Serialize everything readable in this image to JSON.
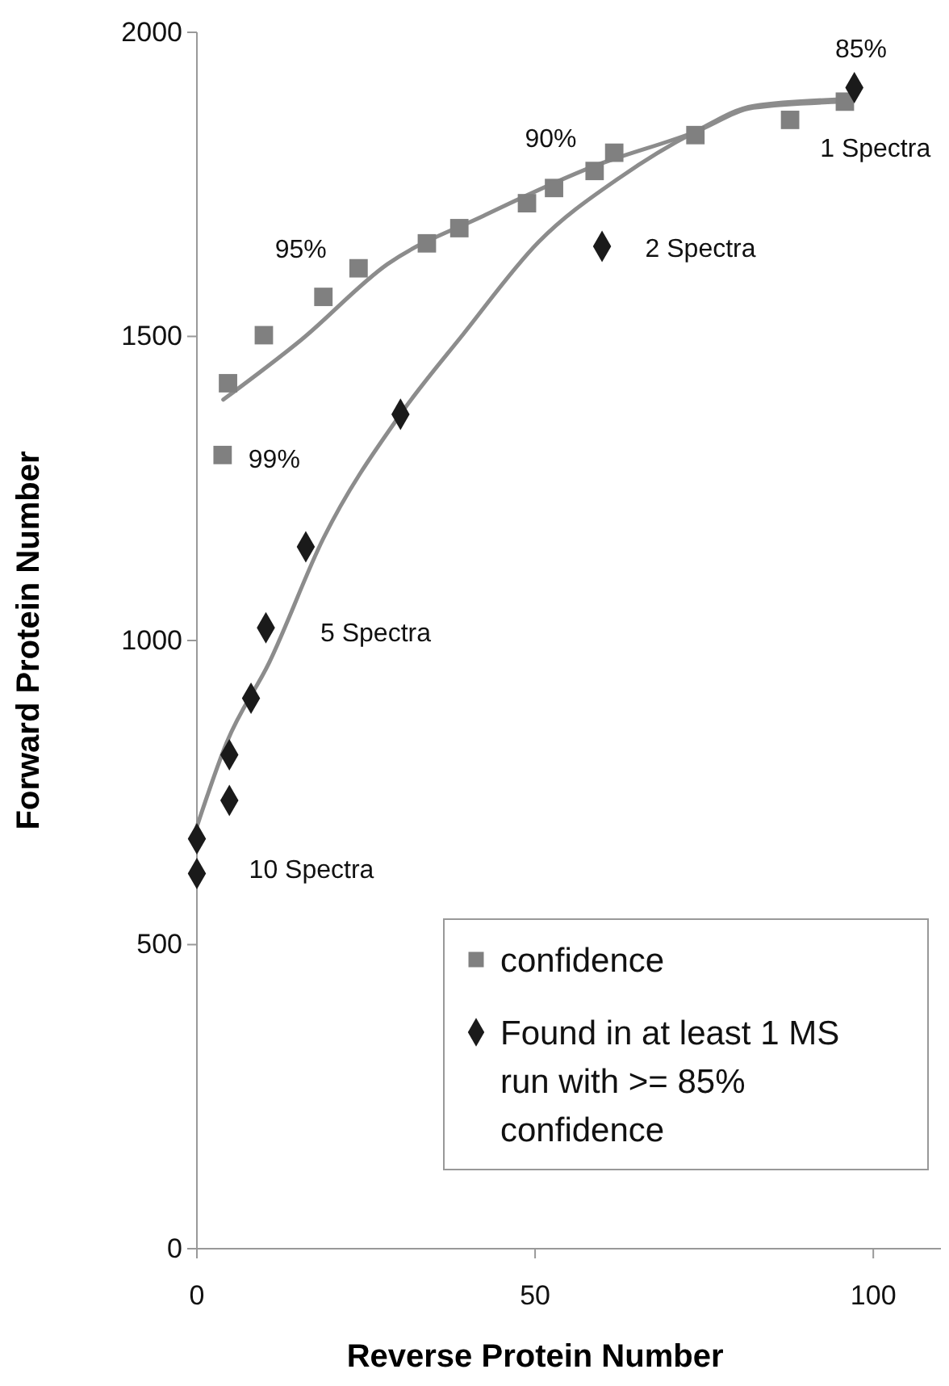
{
  "chart_data": {
    "type": "scatter",
    "xlabel": "Reverse Protein Number",
    "ylabel": "Forward Protein Number",
    "xlim": [
      0,
      110
    ],
    "ylim": [
      0,
      2000
    ],
    "xticks": [
      0,
      50,
      100
    ],
    "yticks": [
      0,
      500,
      1000,
      1500,
      2000
    ],
    "grid": false,
    "legend": "bottom right",
    "series": [
      {
        "name": "confidence",
        "marker": "square",
        "color": "#808080",
        "x": [
          3.8,
          4.6,
          9.9,
          18.7,
          23.9,
          34,
          38.8,
          48.8,
          52.8,
          58.8,
          61.7,
          73.7,
          87.7,
          95.8
        ],
        "values": [
          1305,
          1423,
          1502,
          1565,
          1612,
          1653,
          1678,
          1719,
          1744,
          1772,
          1802,
          1831,
          1856,
          1886
        ]
      },
      {
        "name": "Found in at least 1 MS run with >= 85% confidence",
        "marker": "diamond",
        "color": "#1a1a1a",
        "x": [
          0,
          0,
          4.8,
          4.8,
          8,
          10.2,
          16.1,
          30.1,
          59.9,
          97.2
        ],
        "values": [
          617,
          674,
          737,
          812,
          905,
          1021,
          1154,
          1372,
          1648,
          1909
        ]
      },
      {
        "type": "line",
        "marker": "none",
        "color": "#8c8c8c",
        "x": [
          3.9,
          15.5,
          28.2,
          42.5,
          58.5,
          73.6,
          82.3,
          95.8
        ],
        "values": [
          1396,
          1495,
          1619,
          1699,
          1779,
          1836,
          1876,
          1886
        ]
      },
      {
        "type": "line",
        "marker": "none",
        "color": "#8c8c8c",
        "x": [
          0,
          4.4,
          10.7,
          18.7,
          30.1,
          39.4,
          50.5,
          62.5,
          73.6,
          82.3,
          95.8
        ],
        "values": [
          694,
          832,
          964,
          1168,
          1372,
          1504,
          1655,
          1761,
          1836,
          1879,
          1890
        ]
      }
    ],
    "annotations": [
      {
        "text": "85%",
        "x": 95.8,
        "y": 1886
      },
      {
        "text": "1 Spectra",
        "x": 97.2,
        "y": 1909
      },
      {
        "text": "90%",
        "x": 52.8,
        "y": 1744
      },
      {
        "text": "2 Spectra",
        "x": 59.9,
        "y": 1648
      },
      {
        "text": "95%",
        "x": 18.7,
        "y": 1565
      },
      {
        "text": "99%",
        "x": 3.8,
        "y": 1305
      },
      {
        "text": "5 Spectra",
        "x": 10.2,
        "y": 1021
      },
      {
        "text": "10 Spectra",
        "x": 0,
        "y": 617
      }
    ]
  }
}
